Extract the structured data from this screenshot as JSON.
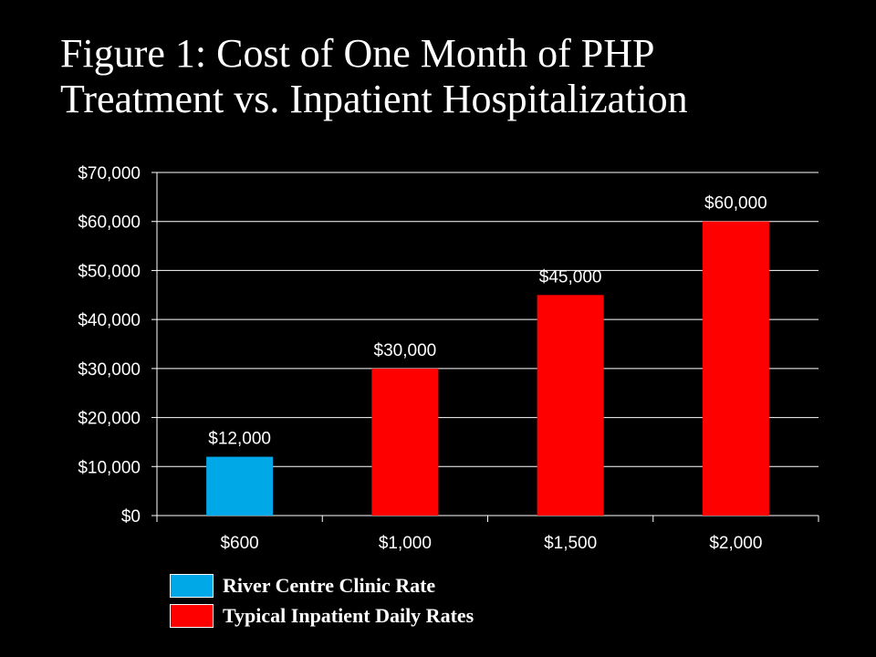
{
  "title_line1": "Figure 1: Cost of One Month of PHP",
  "title_line2": "Treatment vs. Inpatient Hospitalization",
  "chart_data": {
    "type": "bar",
    "categories": [
      "$600",
      "$1,000",
      "$1,500",
      "$2,000"
    ],
    "values": [
      12000,
      30000,
      45000,
      60000
    ],
    "data_labels": [
      "$12,000",
      "$30,000",
      "$45,000",
      "$60,000"
    ],
    "bar_colors": [
      "#00a8e8",
      "#ff0000",
      "#ff0000",
      "#ff0000"
    ],
    "ylim": [
      0,
      70000
    ],
    "yticks": [
      0,
      10000,
      20000,
      30000,
      40000,
      50000,
      60000,
      70000
    ],
    "ytick_labels": [
      "$0",
      "$10,000",
      "$20,000",
      "$30,000",
      "$40,000",
      "$50,000",
      "$60,000",
      "$70,000"
    ],
    "grid": true,
    "legend": {
      "position": "bottom-left",
      "entries": [
        {
          "label": "River Centre Clinic Rate",
          "color": "#00a8e8"
        },
        {
          "label": "Typical Inpatient Daily Rates",
          "color": "#ff0000"
        }
      ]
    },
    "background": "#000000",
    "text_color": "#ffffff"
  }
}
